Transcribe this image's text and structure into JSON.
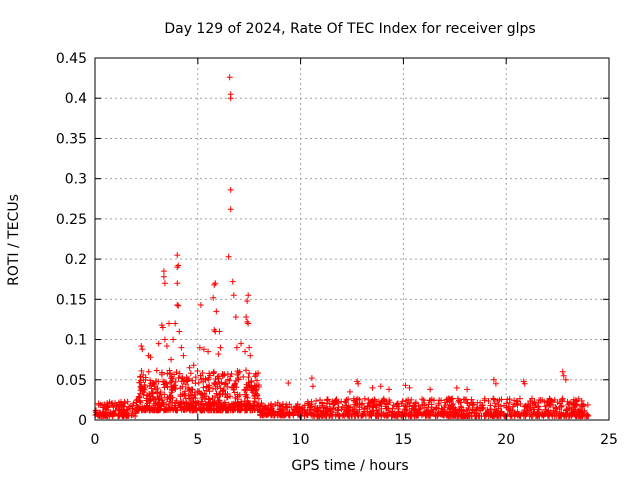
{
  "chart_data": {
    "type": "scatter",
    "title": "Day 129 of 2024, Rate Of TEC Index for receiver glps",
    "xlabel": "GPS time / hours",
    "ylabel": "ROTI / TECUs",
    "xlim": [
      0,
      25
    ],
    "ylim": [
      0,
      0.45
    ],
    "xticks": [
      0,
      5,
      10,
      15,
      20,
      25
    ],
    "xtick_labels": [
      "0",
      "5",
      "10",
      "15",
      "20",
      "25"
    ],
    "yticks": [
      0,
      0.05,
      0.1,
      0.15,
      0.2,
      0.25,
      0.3,
      0.35,
      0.4,
      0.45
    ],
    "ytick_labels": [
      "0",
      "0.05",
      "0.1",
      "0.15",
      "0.2",
      "0.25",
      "0.3",
      "0.35",
      "0.4",
      "0.45"
    ],
    "grid": true,
    "marker": "+",
    "color": "#ff0000",
    "series": [
      {
        "name": "ROTI",
        "points": [
          [
            6.55,
            0.426
          ],
          [
            6.6,
            0.405
          ],
          [
            6.6,
            0.4
          ],
          [
            6.6,
            0.286
          ],
          [
            6.6,
            0.262
          ],
          [
            6.5,
            0.203
          ],
          [
            4.0,
            0.205
          ],
          [
            4.05,
            0.192
          ],
          [
            4.0,
            0.19
          ],
          [
            4.0,
            0.17
          ],
          [
            3.35,
            0.185
          ],
          [
            3.35,
            0.178
          ],
          [
            3.4,
            0.17
          ],
          [
            4.0,
            0.143
          ],
          [
            4.05,
            0.142
          ],
          [
            5.85,
            0.17
          ],
          [
            5.8,
            0.168
          ],
          [
            5.75,
            0.152
          ],
          [
            5.9,
            0.135
          ],
          [
            6.7,
            0.172
          ],
          [
            6.75,
            0.155
          ],
          [
            7.45,
            0.155
          ],
          [
            7.4,
            0.148
          ],
          [
            5.15,
            0.143
          ],
          [
            6.85,
            0.128
          ],
          [
            7.35,
            0.128
          ],
          [
            7.4,
            0.122
          ],
          [
            7.45,
            0.12
          ],
          [
            3.25,
            0.118
          ],
          [
            3.3,
            0.115
          ],
          [
            3.6,
            0.12
          ],
          [
            3.9,
            0.12
          ],
          [
            4.1,
            0.11
          ],
          [
            5.8,
            0.112
          ],
          [
            5.85,
            0.11
          ],
          [
            6.05,
            0.11
          ],
          [
            2.25,
            0.092
          ],
          [
            2.3,
            0.088
          ],
          [
            2.6,
            0.08
          ],
          [
            2.7,
            0.078
          ],
          [
            3.1,
            0.095
          ],
          [
            3.4,
            0.1
          ],
          [
            3.5,
            0.092
          ],
          [
            3.8,
            0.1
          ],
          [
            4.2,
            0.09
          ],
          [
            5.1,
            0.09
          ],
          [
            5.3,
            0.088
          ],
          [
            5.5,
            0.085
          ],
          [
            6.0,
            0.082
          ],
          [
            6.1,
            0.09
          ],
          [
            6.9,
            0.09
          ],
          [
            7.1,
            0.095
          ],
          [
            7.3,
            0.085
          ],
          [
            7.5,
            0.09
          ],
          [
            7.55,
            0.08
          ],
          [
            4.3,
            0.08
          ],
          [
            3.7,
            0.075
          ],
          [
            4.6,
            0.065
          ],
          [
            4.8,
            0.068
          ],
          [
            9.4,
            0.046
          ],
          [
            10.55,
            0.052
          ],
          [
            10.6,
            0.042
          ],
          [
            12.75,
            0.048
          ],
          [
            12.8,
            0.045
          ],
          [
            12.4,
            0.035
          ],
          [
            13.5,
            0.04
          ],
          [
            13.9,
            0.042
          ],
          [
            14.3,
            0.038
          ],
          [
            15.1,
            0.043
          ],
          [
            15.3,
            0.04
          ],
          [
            16.3,
            0.038
          ],
          [
            17.6,
            0.04
          ],
          [
            18.1,
            0.038
          ],
          [
            19.4,
            0.05
          ],
          [
            19.5,
            0.045
          ],
          [
            20.85,
            0.048
          ],
          [
            20.9,
            0.045
          ],
          [
            22.75,
            0.06
          ],
          [
            22.8,
            0.055
          ],
          [
            22.9,
            0.05
          ]
        ],
        "dense_bands": [
          {
            "x_range": [
              0,
              2
            ],
            "y_base": 0.012,
            "y_spread": 0.018,
            "count": 140
          },
          {
            "x_range": [
              2,
              8
            ],
            "y_base": 0.03,
            "y_spread": 0.05,
            "count": 700
          },
          {
            "x_range": [
              8,
              10
            ],
            "y_base": 0.014,
            "y_spread": 0.016,
            "count": 140
          },
          {
            "x_range": [
              10,
              24
            ],
            "y_base": 0.012,
            "y_spread": 0.022,
            "count": 900
          }
        ]
      }
    ]
  }
}
